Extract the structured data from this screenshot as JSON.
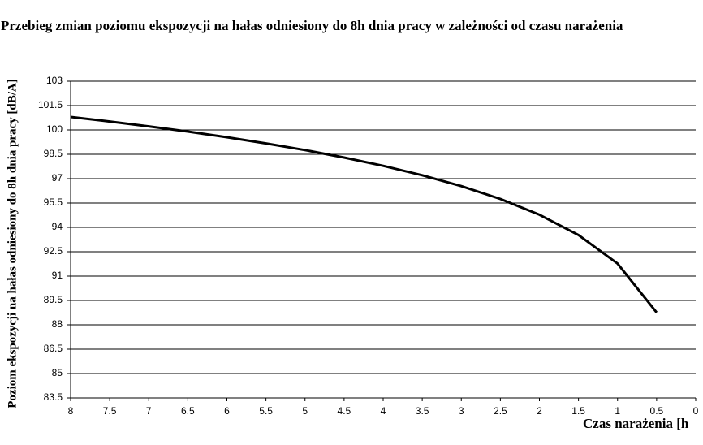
{
  "chart_data": {
    "type": "line",
    "title": "Przebieg zmian poziomu ekspozycji na hałas odniesiony do 8h dnia pracy w zależności od czasu narażenia",
    "x_label": "Czas narażenia [h",
    "y_label": "Poziom ekspozycji na hałas odniesiony do 8h dnia pracy [dB/A]",
    "x": [
      8,
      7.5,
      7,
      6.5,
      6,
      5.5,
      5,
      4.5,
      4,
      3.5,
      3,
      2.5,
      2,
      1.5,
      1,
      0.5
    ],
    "values": [
      100.8,
      100.52,
      100.22,
      99.9,
      99.55,
      99.17,
      98.76,
      98.3,
      97.79,
      97.21,
      96.54,
      95.75,
      94.78,
      93.53,
      91.77,
      88.76
    ],
    "color": "#000000",
    "xlim": [
      8,
      0
    ],
    "xticks": [
      8,
      7.5,
      7,
      6.5,
      6,
      5.5,
      5,
      4.5,
      4,
      3.5,
      3,
      2.5,
      2,
      1.5,
      1,
      0.5,
      0
    ],
    "ylim": [
      83.5,
      103
    ],
    "yticks": [
      83.5,
      85,
      86.5,
      88,
      89.5,
      91,
      92.5,
      94,
      95.5,
      97,
      98.5,
      100,
      101.5,
      103
    ],
    "grid": true
  }
}
